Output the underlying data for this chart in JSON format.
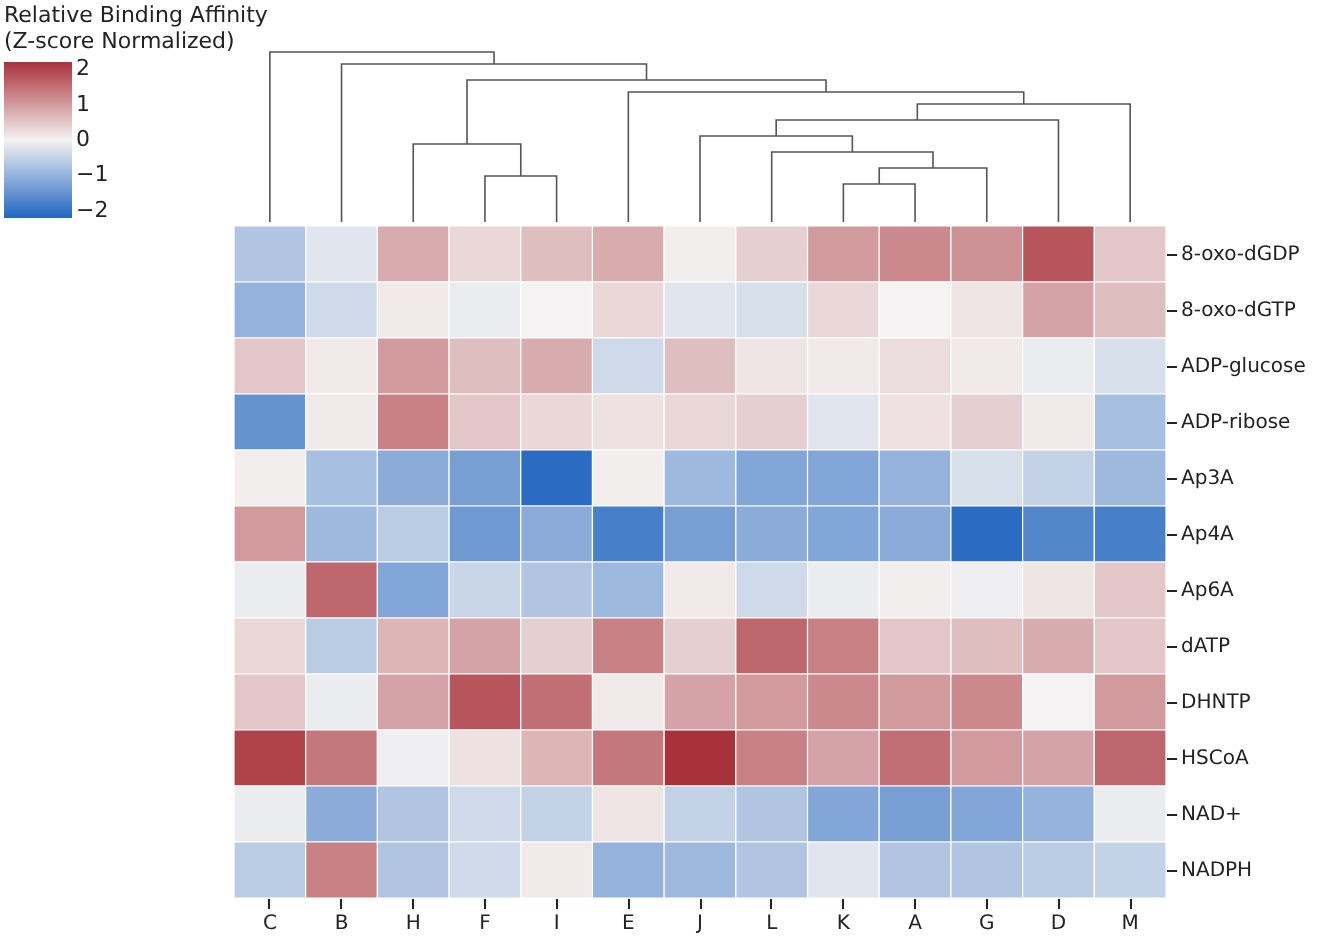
{
  "chart_data": {
    "type": "heatmap",
    "legend_title": "Relative Binding Affinity\n(Z-score Normalized)",
    "categories": [
      "C",
      "B",
      "H",
      "F",
      "I",
      "E",
      "J",
      "L",
      "K",
      "A",
      "G",
      "D",
      "M"
    ],
    "y_categories": [
      "8-oxo-dGDP",
      "8-oxo-dGTP",
      "ADP-glucose",
      "ADP-ribose",
      "Ap3A",
      "Ap4A",
      "Ap6A",
      "dATP",
      "DHNTP",
      "HSCoA",
      "NAD+",
      "NADPH"
    ],
    "cells": [
      [
        -0.7,
        -0.2,
        0.8,
        0.3,
        0.6,
        0.8,
        0.05,
        0.4,
        1.0,
        1.2,
        1.1,
        1.8,
        0.5
      ],
      [
        -1.0,
        -0.4,
        0.1,
        -0.1,
        0.0,
        0.3,
        -0.2,
        -0.3,
        0.3,
        0.0,
        0.15,
        0.9,
        0.6
      ],
      [
        0.5,
        0.1,
        1.0,
        0.6,
        0.8,
        -0.4,
        0.6,
        0.15,
        0.1,
        0.25,
        0.1,
        -0.1,
        -0.3
      ],
      [
        -1.5,
        0.1,
        1.3,
        0.5,
        0.3,
        0.2,
        0.3,
        0.4,
        -0.2,
        0.2,
        0.4,
        0.1,
        -0.8
      ],
      [
        0.05,
        -0.8,
        -1.1,
        -1.3,
        -2.1,
        0.05,
        -0.9,
        -1.2,
        -1.2,
        -1.0,
        -0.3,
        -0.5,
        -0.9
      ],
      [
        1.0,
        -0.9,
        -0.6,
        -1.4,
        -1.1,
        -1.8,
        -1.3,
        -1.1,
        -1.2,
        -1.1,
        -2.1,
        -1.7,
        -1.8
      ],
      [
        -0.1,
        1.6,
        -1.2,
        -0.45,
        -0.7,
        -0.9,
        0.1,
        -0.4,
        -0.1,
        0.05,
        -0.05,
        0.15,
        0.5
      ],
      [
        0.3,
        -0.6,
        0.7,
        0.9,
        0.4,
        1.3,
        0.4,
        1.6,
        1.3,
        0.5,
        0.6,
        0.8,
        0.5
      ],
      [
        0.5,
        -0.1,
        0.9,
        1.8,
        1.5,
        0.1,
        0.9,
        1.0,
        1.2,
        1.0,
        1.2,
        0.0,
        1.0
      ],
      [
        2.0,
        1.4,
        -0.05,
        0.2,
        0.7,
        1.4,
        2.2,
        1.3,
        0.9,
        1.5,
        1.0,
        0.9,
        1.6
      ],
      [
        -0.1,
        -1.1,
        -0.7,
        -0.4,
        -0.5,
        0.15,
        -0.5,
        -0.7,
        -1.2,
        -1.3,
        -1.2,
        -1.0,
        -0.1
      ],
      [
        -0.6,
        1.3,
        -0.7,
        -0.4,
        0.1,
        -1.0,
        -0.9,
        -0.7,
        -0.2,
        -0.7,
        -0.7,
        -0.6,
        -0.5
      ]
    ],
    "clim": [
      -2.2,
      2.2
    ],
    "cticks": [
      {
        "value": -2,
        "label": "−2"
      },
      {
        "value": -1,
        "label": "−1"
      },
      0,
      1,
      2
    ]
  }
}
